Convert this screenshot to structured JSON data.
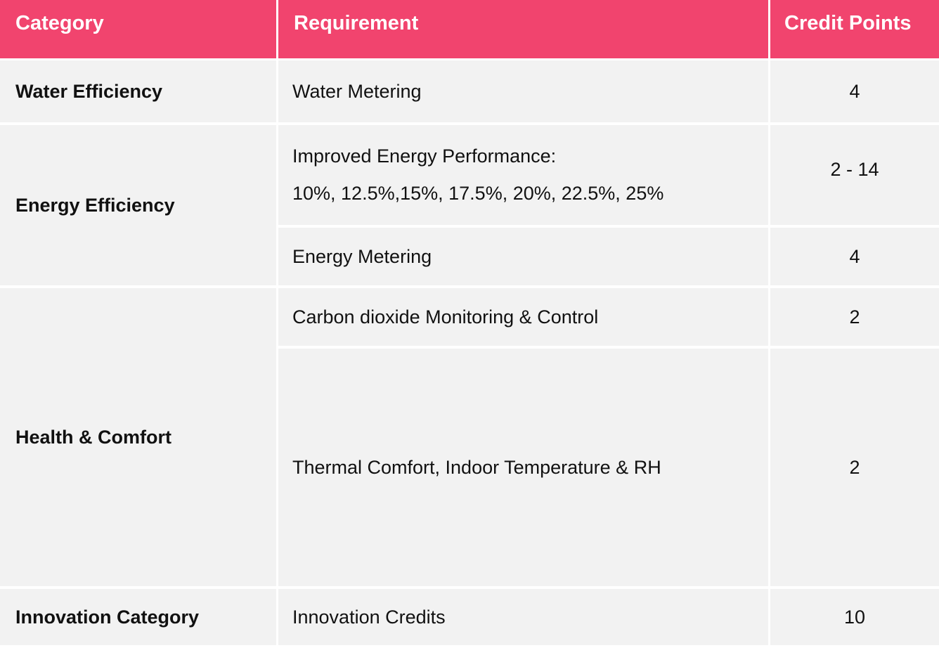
{
  "table": {
    "headers": {
      "category": "Category",
      "requirement": "Requirement",
      "credit_points": "Credit Points"
    },
    "rows": [
      {
        "category": "Water Efficiency",
        "requirements": [
          {
            "text": [
              "Water Metering"
            ],
            "points": "4"
          }
        ]
      },
      {
        "category": "Energy Efficiency",
        "requirements": [
          {
            "text": [
              "Improved Energy Performance:",
              "10%, 12.5%,15%, 17.5%, 20%, 22.5%, 25%"
            ],
            "points": "2 - 14"
          },
          {
            "text": [
              "Energy Metering"
            ],
            "points": "4"
          }
        ]
      },
      {
        "category": "Health & Comfort",
        "requirements": [
          {
            "text": [
              "Carbon dioxide Monitoring & Control"
            ],
            "points": "2"
          },
          {
            "text": [
              "Thermal Comfort, Indoor Temperature & RH"
            ],
            "points": "2"
          }
        ]
      },
      {
        "category": "Innovation Category",
        "requirements": [
          {
            "text": [
              "Innovation Credits"
            ],
            "points": "10"
          }
        ]
      }
    ]
  },
  "colors": {
    "header_bg": "#f1446e",
    "header_text": "#ffffff",
    "cell_bg": "#f2f2f2",
    "cell_text": "#111111"
  }
}
